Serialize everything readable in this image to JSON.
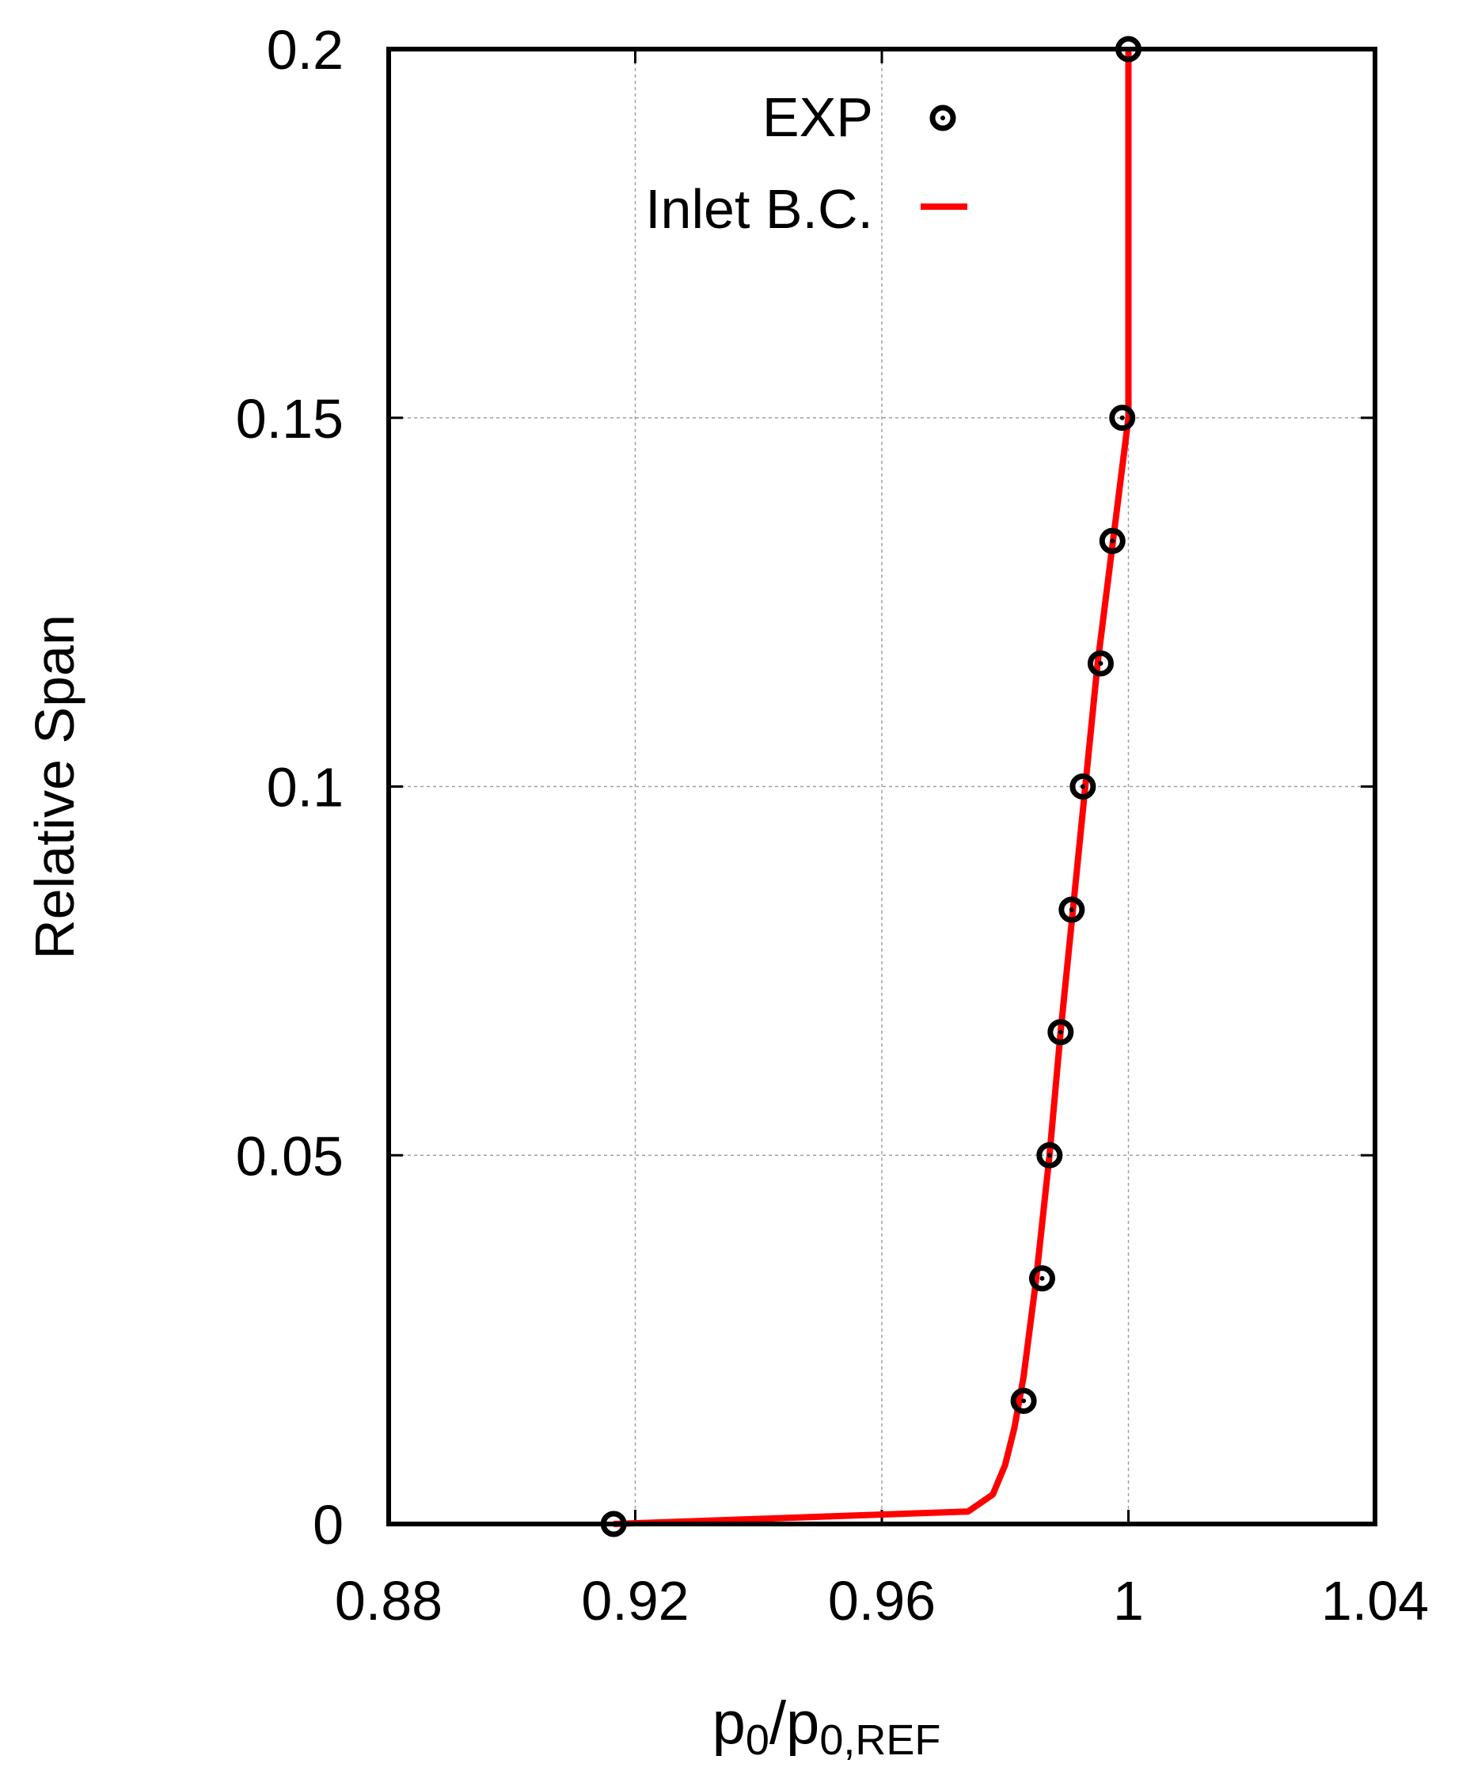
{
  "chart_data": {
    "type": "scatter",
    "xlabel": {
      "base": "p",
      "sub1": "0",
      "slash": "/p",
      "sub2": "0,REF"
    },
    "ylabel": "Relative Span",
    "xlim": [
      0.88,
      1.04
    ],
    "ylim": [
      0,
      0.2
    ],
    "xticks": [
      {
        "value": 0.88,
        "label": "0.88"
      },
      {
        "value": 0.92,
        "label": "0.92"
      },
      {
        "value": 0.96,
        "label": "0.96"
      },
      {
        "value": 1.0,
        "label": "1"
      },
      {
        "value": 1.04,
        "label": "1.04"
      }
    ],
    "yticks": [
      {
        "value": 0,
        "label": "0"
      },
      {
        "value": 0.05,
        "label": "0.05"
      },
      {
        "value": 0.1,
        "label": "0.1"
      },
      {
        "value": 0.15,
        "label": "0.15"
      },
      {
        "value": 0.2,
        "label": "0.2"
      }
    ],
    "grid": true,
    "legend_position": "top-right",
    "series": [
      {
        "name": "EXP",
        "kind": "points",
        "color": "#000000",
        "points": [
          {
            "x": 0.9165,
            "y": 0.0
          },
          {
            "x": 0.983,
            "y": 0.0167
          },
          {
            "x": 0.986,
            "y": 0.0333
          },
          {
            "x": 0.9872,
            "y": 0.05
          },
          {
            "x": 0.989,
            "y": 0.0667
          },
          {
            "x": 0.9908,
            "y": 0.0833
          },
          {
            "x": 0.9926,
            "y": 0.1
          },
          {
            "x": 0.9955,
            "y": 0.1167
          },
          {
            "x": 0.9974,
            "y": 0.1333
          },
          {
            "x": 0.999,
            "y": 0.15
          },
          {
            "x": 1.0,
            "y": 0.2
          }
        ]
      },
      {
        "name": "Inlet B.C.",
        "kind": "line",
        "color": "#ff0000",
        "points": [
          {
            "x": 0.9165,
            "y": 0.0
          },
          {
            "x": 0.974,
            "y": 0.0017
          },
          {
            "x": 0.978,
            "y": 0.004
          },
          {
            "x": 0.98,
            "y": 0.008
          },
          {
            "x": 0.9815,
            "y": 0.013
          },
          {
            "x": 0.983,
            "y": 0.02
          },
          {
            "x": 0.985,
            "y": 0.033
          },
          {
            "x": 0.9872,
            "y": 0.05
          },
          {
            "x": 0.989,
            "y": 0.0667
          },
          {
            "x": 0.991,
            "y": 0.0833
          },
          {
            "x": 0.993,
            "y": 0.1
          },
          {
            "x": 0.995,
            "y": 0.1167
          },
          {
            "x": 0.9975,
            "y": 0.1333
          },
          {
            "x": 1.0,
            "y": 0.15
          },
          {
            "x": 1.0,
            "y": 0.2
          }
        ]
      }
    ]
  }
}
